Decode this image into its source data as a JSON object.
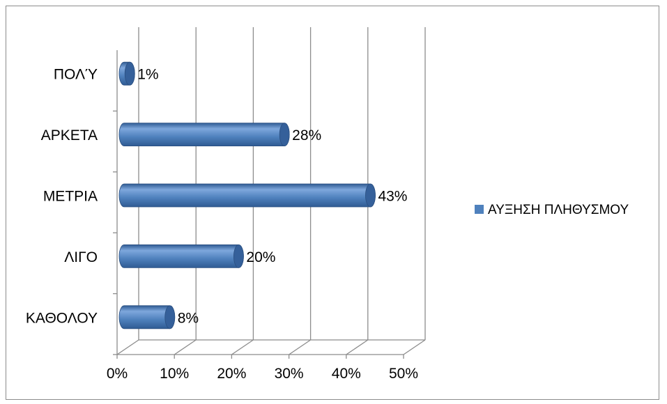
{
  "chart_data": {
    "type": "bar",
    "orientation": "horizontal",
    "style": "3d-cylinder",
    "categories": [
      "ΚΑΘΟΛΟΥ",
      "ΛΙΓΟ",
      "ΜΕΤΡΙΑ",
      "ΑΡΚΕΤΑ",
      "ΠΟΛΎ"
    ],
    "series": [
      {
        "name": "ΑΥΞΗΣΗ ΠΛΗΘΥΣΜΟΥ",
        "values": [
          8,
          20,
          43,
          28,
          1
        ]
      }
    ],
    "data_labels": [
      "8%",
      "20%",
      "43%",
      "28%",
      "1%"
    ],
    "xlim": [
      0,
      50
    ],
    "xticks": [
      "0%",
      "10%",
      "20%",
      "30%",
      "40%",
      "50%"
    ],
    "title": "",
    "xlabel": "",
    "ylabel": "",
    "grid": "vertical",
    "legend": "right",
    "colors": {
      "bar_top": "#7ea7dc",
      "bar_mid": "#4f81bd",
      "bar_bottom": "#2f5b93",
      "bar_cap": "#35609a",
      "gridline": "#8c8c8c"
    }
  }
}
